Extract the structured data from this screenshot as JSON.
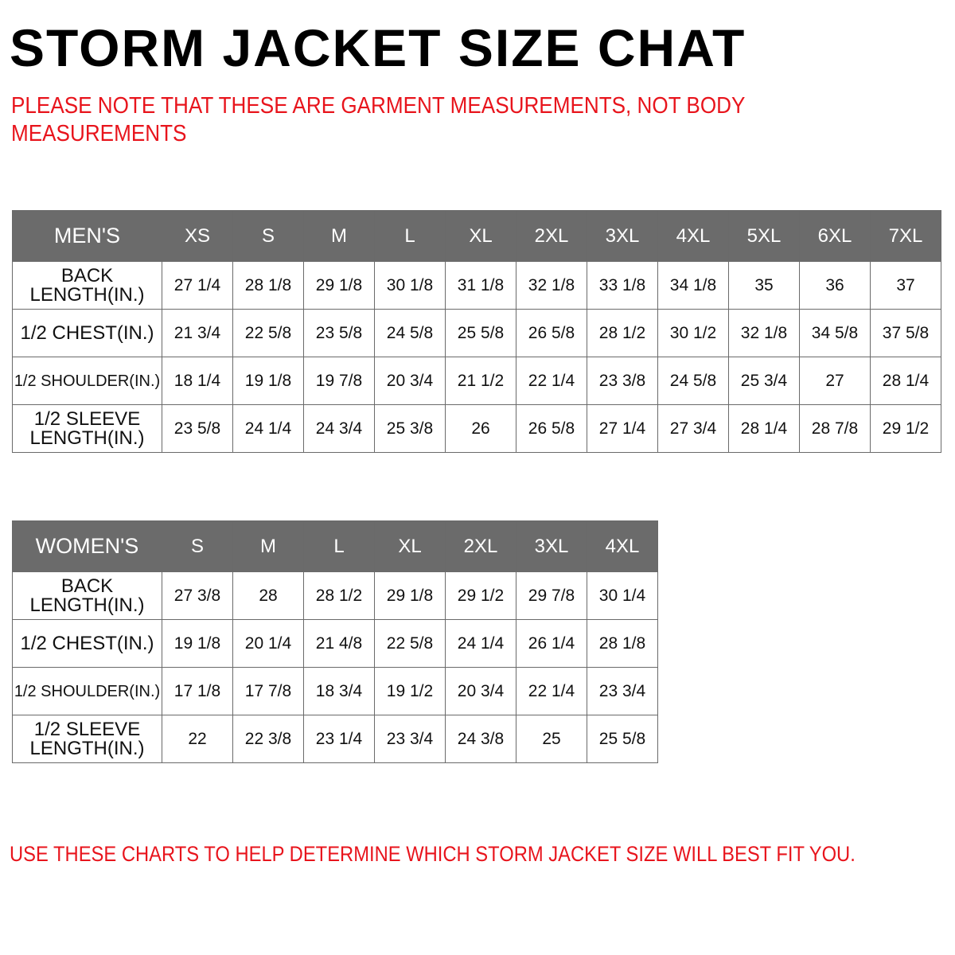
{
  "title": "STORM JACKET SIZE CHAT",
  "note": "PLEASE NOTE THAT THESE ARE GARMENT MEASUREMENTS, NOT BODY MEASUREMENTS",
  "mens": {
    "header": "MEN'S",
    "sizes": [
      "XS",
      "S",
      "M",
      "L",
      "XL",
      "2XL",
      "3XL",
      "4XL",
      "5XL",
      "6XL",
      "7XL"
    ],
    "rows": [
      {
        "label": "BACK LENGTH(IN.)",
        "values": [
          "27 1/4",
          "28 1/8",
          "29 1/8",
          "30 1/8",
          "31 1/8",
          "32 1/8",
          "33 1/8",
          "34 1/8",
          "35",
          "36",
          "37"
        ]
      },
      {
        "label": "1/2 CHEST(IN.)",
        "values": [
          "21 3/4",
          "22 5/8",
          "23 5/8",
          "24 5/8",
          "25 5/8",
          "26 5/8",
          "28 1/2",
          "30 1/2",
          "32 1/8",
          "34 5/8",
          "37 5/8"
        ]
      },
      {
        "label": "1/2 SHOULDER(IN.)",
        "values": [
          "18 1/4",
          "19 1/8",
          "19 7/8",
          "20 3/4",
          "21 1/2",
          "22 1/4",
          "23 3/8",
          "24 5/8",
          "25 3/4",
          "27",
          "28 1/4"
        ]
      },
      {
        "label": "1/2 SLEEVE LENGTH(IN.)",
        "values": [
          "23 5/8",
          "24 1/4",
          "24 3/4",
          "25 3/8",
          "26",
          "26 5/8",
          "27 1/4",
          "27 3/4",
          "28 1/4",
          "28 7/8",
          "29 1/2"
        ]
      }
    ]
  },
  "womens": {
    "header": "WOMEN'S",
    "sizes": [
      "S",
      "M",
      "L",
      "XL",
      "2XL",
      "3XL",
      "4XL"
    ],
    "rows": [
      {
        "label": "BACK LENGTH(IN.)",
        "values": [
          "27 3/8",
          "28",
          "28 1/2",
          "29 1/8",
          "29 1/2",
          "29 7/8",
          "30 1/4"
        ]
      },
      {
        "label": "1/2 CHEST(IN.)",
        "values": [
          "19 1/8",
          "20 1/4",
          "21 4/8",
          "22 5/8",
          "24 1/4",
          "26 1/4",
          "28 1/8"
        ]
      },
      {
        "label": "1/2 SHOULDER(IN.)",
        "values": [
          "17 1/8",
          "17 7/8",
          "18 3/4",
          "19 1/2",
          "20 3/4",
          "22 1/4",
          "23 3/4"
        ]
      },
      {
        "label": "1/2 SLEEVE LENGTH(IN.)",
        "values": [
          "22",
          "22 3/8",
          "23 1/4",
          "23 3/4",
          "24 3/8",
          "25",
          "25 5/8"
        ]
      }
    ]
  },
  "footer": "USE THESE CHARTS TO HELP DETERMINE WHICH STORM JACKET  SIZE WILL BEST FIT YOU.",
  "colors": {
    "header_bg": "#6b6b6b",
    "accent_red": "#e8141c"
  }
}
